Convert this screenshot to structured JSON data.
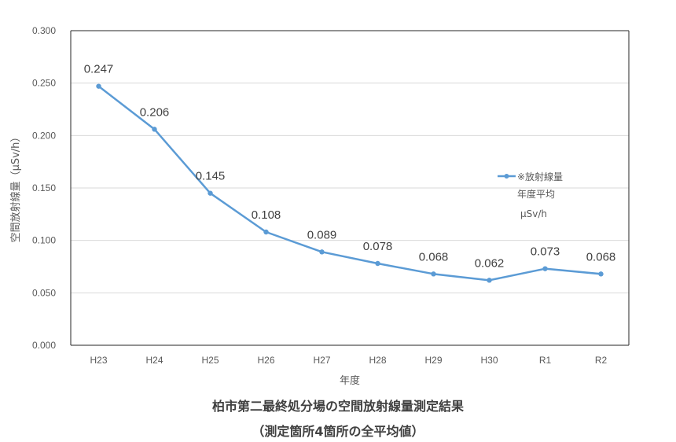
{
  "chart_data": {
    "type": "line",
    "categories": [
      "H23",
      "H24",
      "H25",
      "H26",
      "H27",
      "H28",
      "H29",
      "H30",
      "R1",
      "R2"
    ],
    "series": [
      {
        "name": "※放射線量年度平均μSv/h",
        "legend_lines": [
          "※放射線量",
          "年度平均",
          "μSv/h"
        ],
        "values": [
          0.247,
          0.206,
          0.145,
          0.108,
          0.089,
          0.078,
          0.068,
          0.062,
          0.073,
          0.068
        ],
        "labels": [
          "0.247",
          "0.206",
          "0.145",
          "0.108",
          "0.089",
          "0.078",
          "0.068",
          "0.062",
          "0.073",
          "0.068"
        ],
        "color": "#5b9bd5"
      }
    ],
    "xlabel": "年度",
    "ylabel": "空間放射線量（μSv/h）",
    "ylim": [
      0,
      0.3
    ],
    "yticks": [
      "0.000",
      "0.050",
      "0.100",
      "0.150",
      "0.200",
      "0.250",
      "0.300"
    ],
    "grid": true,
    "legend_position": "right"
  },
  "caption": {
    "line1": "柏市第二最終処分場の空間放射線量測定結果",
    "line2": "（測定箇所4箇所の全平均値）"
  }
}
